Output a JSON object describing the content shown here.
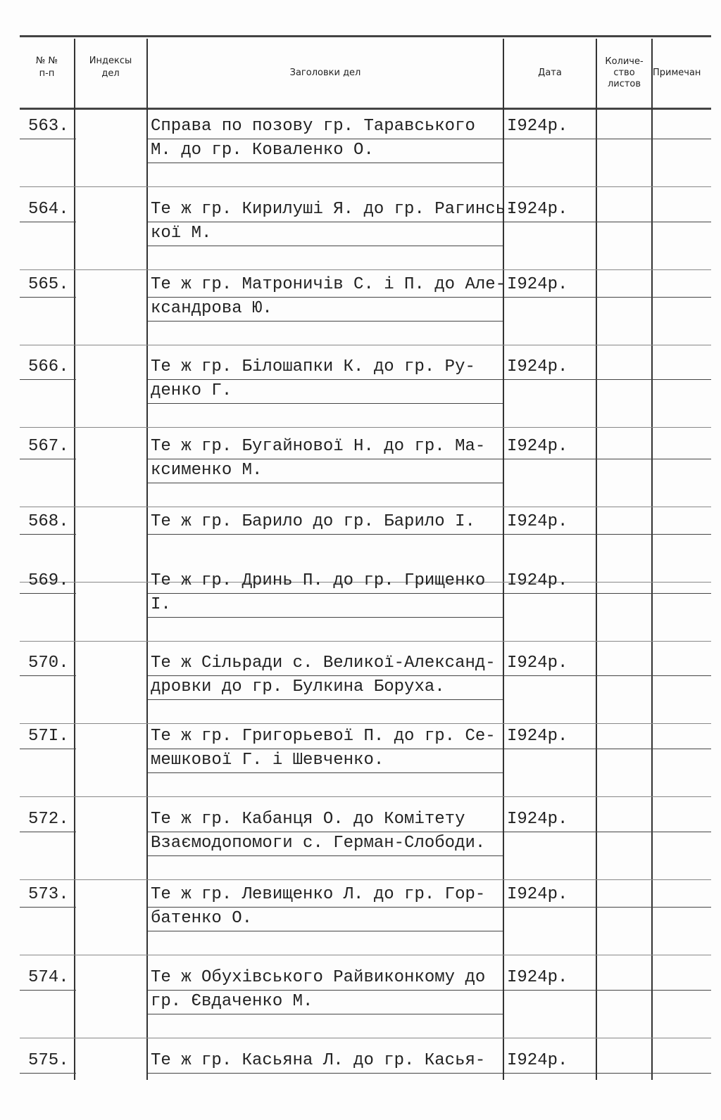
{
  "header": {
    "columns": [
      "№ №",
      "п-п",
      "Индексы",
      "дел",
      "Заголовки дел",
      "Дата",
      "Количе-",
      "ство",
      "листов",
      "Примечан"
    ]
  },
  "table": {
    "rows": [
      {
        "number": "563.",
        "title": [
          "Справа по позову гр. Таравського",
          "М. до гр. Коваленко О."
        ],
        "date": "I924р."
      },
      {
        "number": "564.",
        "title": [
          "Те ж гр. Кирилуші Я. до гр. Рагинсь-",
          "кої М."
        ],
        "date": "I924р."
      },
      {
        "number": "565.",
        "title": [
          "Те ж гр. Матроничів С. і П. до Але-",
          "ксандрова Ю."
        ],
        "date": "I924р."
      },
      {
        "number": "566.",
        "title": [
          "Те ж гр. Білошапки К. до гр. Ру-",
          "денко Г."
        ],
        "date": "I924р."
      },
      {
        "number": "567.",
        "title": [
          "Те ж гр. Бугайнової Н. до гр. Ма-",
          "ксименко М."
        ],
        "date": "I924р."
      },
      {
        "number": "568.",
        "title": [
          "Те ж гр. Барило до гр. Барило І."
        ],
        "date": "I924р."
      },
      {
        "number": "569.",
        "title": [
          "Те ж гр. Дринь П. до гр. Грищенко",
          "І."
        ],
        "date": "I924р."
      },
      {
        "number": "570.",
        "title": [
          "Те ж Сільради с. Великої-Александ-",
          "дровки до гр. Булкина Боруха."
        ],
        "date": "I924р."
      },
      {
        "number": "57I.",
        "title": [
          "Те ж гр. Григорьевої П. до гр. Се-",
          "мешкової Г. і Шевченко."
        ],
        "date": "I924р."
      },
      {
        "number": "572.",
        "title": [
          "Те ж гр. Кабанця О. до Комітету",
          "Взаємодопомоги с. Герман-Слободи."
        ],
        "date": "I924р."
      },
      {
        "number": "573.",
        "title": [
          "Те ж гр. Левищенко Л. до гр. Гор-",
          "батенко О."
        ],
        "date": "I924р."
      },
      {
        "number": "574.",
        "title": [
          "Те ж Обухівського Райвиконкому до",
          "гр. Євдаченко М."
        ],
        "date": "I924р."
      },
      {
        "number": "575.",
        "title": [
          "Те ж гр. Касьяна Л. до гр. Касья-"
        ],
        "date": "I924р."
      }
    ]
  }
}
